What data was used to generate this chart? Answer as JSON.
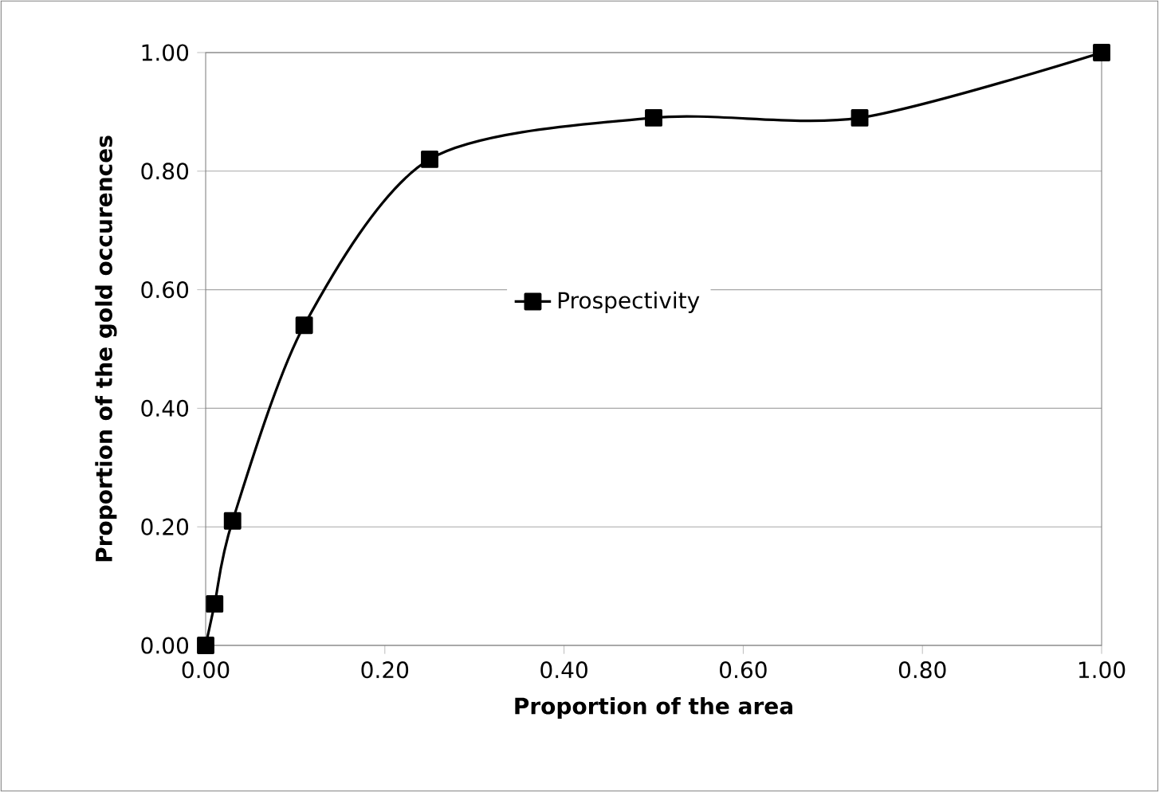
{
  "chart_data": {
    "type": "line",
    "xlabel": "Proportion of the area",
    "ylabel": "Proportion of the gold occurences",
    "x": [
      0.0,
      0.01,
      0.03,
      0.11,
      0.25,
      0.5,
      0.73,
      1.0
    ],
    "series": [
      {
        "name": "Prospectivity",
        "color": "#000000",
        "values": [
          0.0,
          0.07,
          0.21,
          0.54,
          0.82,
          0.89,
          0.89,
          1.0
        ]
      }
    ],
    "xlim": [
      0,
      1
    ],
    "ylim": [
      0,
      1
    ],
    "xticks": [
      {
        "value": 0,
        "label": "0.00"
      },
      {
        "value": 0.2,
        "label": "0.20"
      },
      {
        "value": 0.4,
        "label": "0.40"
      },
      {
        "value": 0.6,
        "label": "0.60"
      },
      {
        "value": 0.8,
        "label": "0.80"
      },
      {
        "value": 1,
        "label": "1.00"
      }
    ],
    "yticks": [
      {
        "value": 0,
        "label": "0.00"
      },
      {
        "value": 0.2,
        "label": "0.20"
      },
      {
        "value": 0.4,
        "label": "0.40"
      },
      {
        "value": 0.6,
        "label": "0.60"
      },
      {
        "value": 0.8,
        "label": "0.80"
      },
      {
        "value": 1,
        "label": "1.00"
      }
    ],
    "grid": "y",
    "legend": "center",
    "marker": "square",
    "line_style": "solid"
  }
}
